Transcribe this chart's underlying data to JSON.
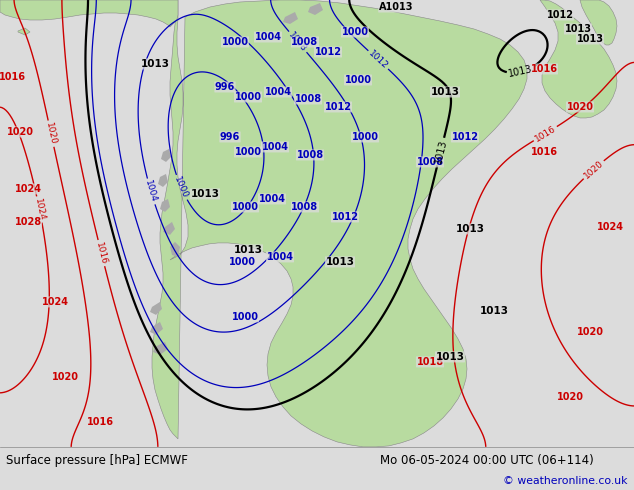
{
  "title_left": "Surface pressure [hPa] ECMWF",
  "title_right": "Mo 06-05-2024 00:00 UTC (06+114)",
  "copyright": "© weatheronline.co.uk",
  "bg_color": "#dcdcdc",
  "land_color": "#b8dba0",
  "gray_land_color": "#aaaaaa",
  "water_color": "#dcdcdc",
  "footer_bg": "#ffffff",
  "blue_line_color": "#0000bb",
  "red_line_color": "#cc0000",
  "black_line_color": "#000000",
  "label_fontsize": 7.0,
  "footer_fontsize": 8.5
}
